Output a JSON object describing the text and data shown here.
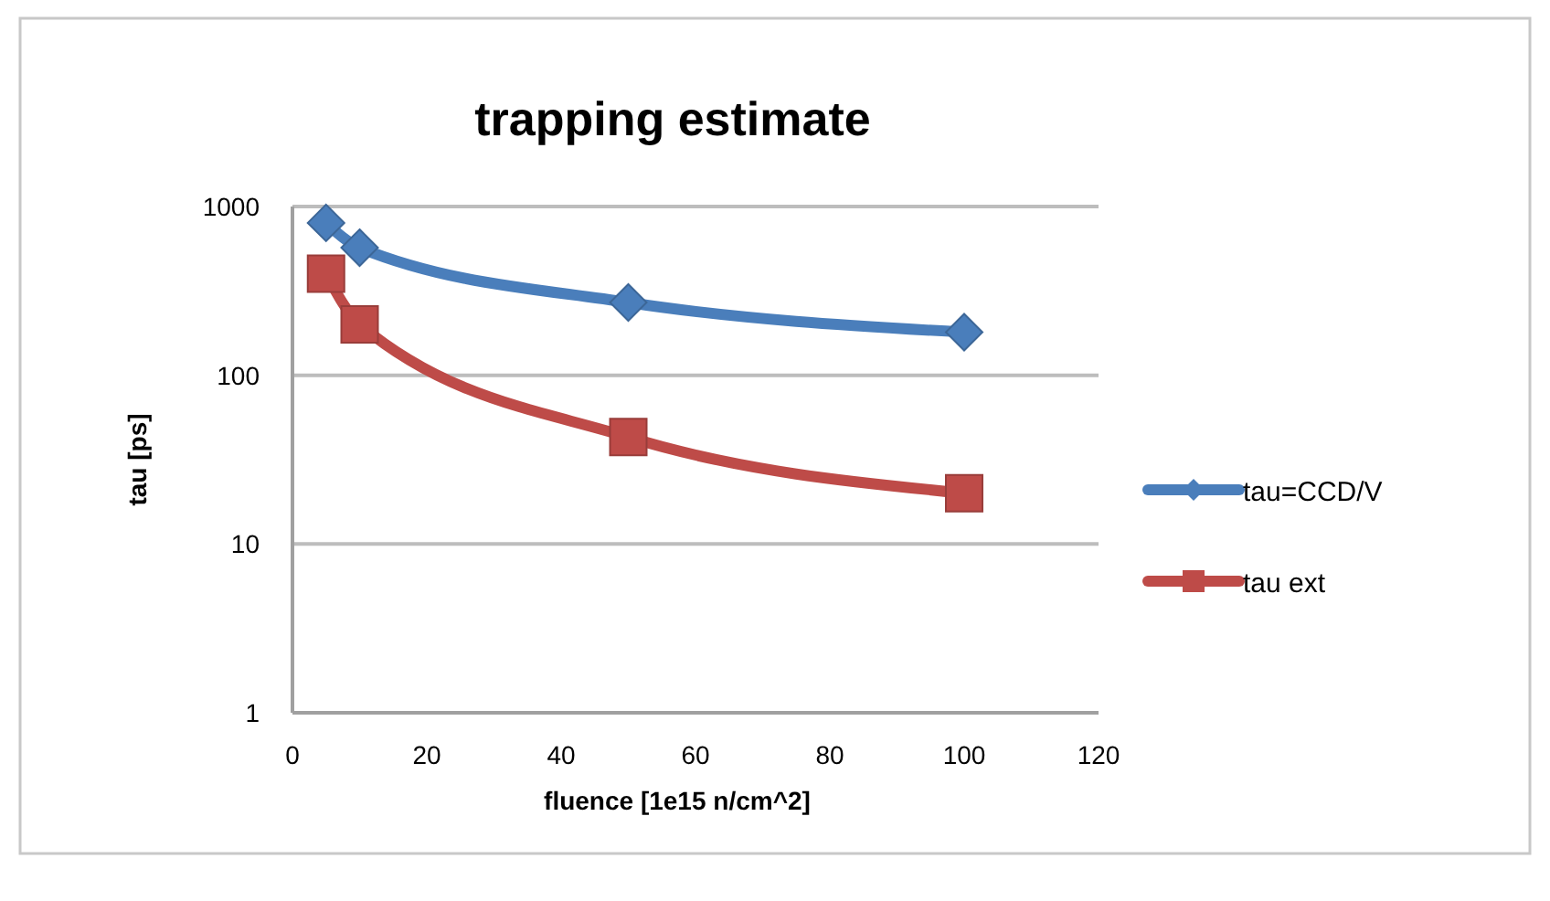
{
  "chart_data": {
    "type": "line",
    "title": "trapping estimate",
    "xlabel": "fluence [1e15 n/cm^2]",
    "ylabel": "tau [ps]",
    "x": [
      5,
      10,
      50,
      100
    ],
    "series": [
      {
        "name": "tau=CCD/V",
        "color": "#4a7ebb",
        "marker": "diamond",
        "values": [
          800,
          570,
          270,
          180
        ]
      },
      {
        "name": "tau ext",
        "color": "#be4b48",
        "marker": "square",
        "values": [
          400,
          200,
          43,
          20
        ]
      }
    ],
    "xlim": [
      0,
      120
    ],
    "xticks": [
      0,
      20,
      40,
      60,
      80,
      100,
      120
    ],
    "ylim": [
      1,
      1000
    ],
    "yticks": [
      1,
      10,
      100,
      1000
    ],
    "log": "y",
    "grid": "y",
    "legend": "right"
  }
}
